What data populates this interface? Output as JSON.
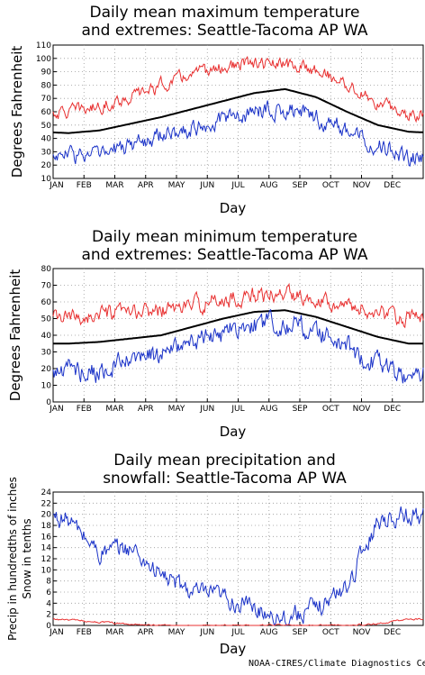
{
  "credit": "NOAA-CIRES/Climate Diagnostics Ce",
  "colors": {
    "normal": "#000000",
    "max_extreme": "#e83030",
    "min_extreme": "#1b33c8",
    "precip": "#1b33c8",
    "snow": "#e83030",
    "grid": "#9a9a9a"
  },
  "chart_data": [
    {
      "type": "line",
      "title_lines": [
        "Daily mean maximum temperature",
        "and extremes: Seattle-Tacoma AP WA"
      ],
      "xlabel": "Day",
      "ylabel_lines": [
        "Degrees Fahrenheit"
      ],
      "x": [
        "JAN",
        "FEB",
        "MAR",
        "APR",
        "MAY",
        "JUN",
        "JUL",
        "AUG",
        "SEP",
        "OCT",
        "NOV",
        "DEC"
      ],
      "ylim": [
        10,
        110
      ],
      "yticks": [
        10,
        20,
        30,
        40,
        50,
        60,
        70,
        80,
        90,
        100,
        110
      ],
      "grid": true,
      "series": [
        {
          "role": "mean",
          "color": "#000000",
          "values": [
            44,
            46,
            51,
            56,
            62,
            68,
            74,
            77,
            71,
            60,
            50,
            45
          ]
        },
        {
          "role": "record-high",
          "color": "#e83030",
          "values": [
            60,
            64,
            71,
            80,
            88,
            93,
            96,
            95,
            92,
            80,
            66,
            58
          ]
        },
        {
          "role": "record-low",
          "color": "#1b33c8",
          "values": [
            28,
            27,
            35,
            42,
            48,
            54,
            60,
            62,
            55,
            46,
            36,
            25
          ]
        }
      ]
    },
    {
      "type": "line",
      "title_lines": [
        "Daily mean minimum temperature",
        "and extremes: Seattle-Tacoma AP WA"
      ],
      "xlabel": "Day",
      "ylabel_lines": [
        "Degrees Fahrenheit"
      ],
      "x": [
        "JAN",
        "FEB",
        "MAR",
        "APR",
        "MAY",
        "JUN",
        "JUL",
        "AUG",
        "SEP",
        "OCT",
        "NOV",
        "DEC"
      ],
      "ylim": [
        0,
        80
      ],
      "yticks": [
        0,
        10,
        20,
        30,
        40,
        50,
        60,
        70,
        80
      ],
      "grid": true,
      "series": [
        {
          "role": "mean",
          "color": "#000000",
          "values": [
            35,
            36,
            38,
            40,
            45,
            50,
            54,
            55,
            51,
            45,
            39,
            35
          ]
        },
        {
          "role": "record-high",
          "color": "#e83030",
          "values": [
            50,
            52,
            53,
            55,
            58,
            61,
            64,
            65,
            63,
            58,
            53,
            50
          ]
        },
        {
          "role": "record-low",
          "color": "#1b33c8",
          "values": [
            20,
            18,
            24,
            29,
            35,
            41,
            46,
            48,
            42,
            33,
            22,
            15
          ]
        }
      ]
    },
    {
      "type": "line",
      "title_lines": [
        "Daily mean precipitation and",
        "snowfall: Seattle-Tacoma AP WA"
      ],
      "xlabel": "Day",
      "ylabel_lines": [
        "Precip in hundredths of inches",
        "Snow in tenths"
      ],
      "x": [
        "JAN",
        "FEB",
        "MAR",
        "APR",
        "MAY",
        "JUN",
        "JUL",
        "AUG",
        "SEP",
        "OCT",
        "NOV",
        "DEC"
      ],
      "ylim": [
        0,
        24
      ],
      "yticks": [
        0,
        2,
        4,
        6,
        8,
        10,
        12,
        14,
        16,
        18,
        20,
        22,
        24
      ],
      "grid": true,
      "series": [
        {
          "role": "precipitation",
          "color": "#1b33c8",
          "values": [
            19,
            13,
            14,
            9,
            6,
            5,
            3,
            1.5,
            3,
            7,
            19,
            20
          ]
        },
        {
          "role": "snowfall",
          "color": "#e83030",
          "values": [
            1.0,
            0.6,
            0.2,
            0,
            0,
            0,
            0,
            0,
            0,
            0,
            0.3,
            1.2
          ]
        }
      ]
    }
  ]
}
